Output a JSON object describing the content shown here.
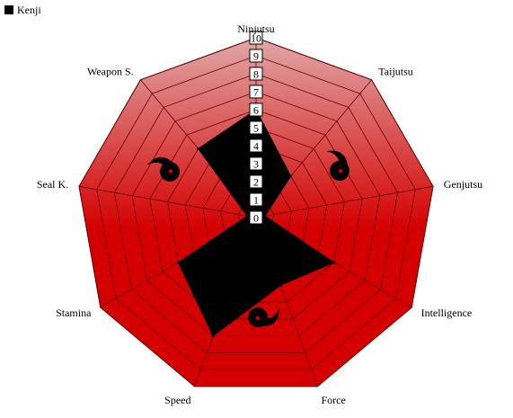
{
  "chart_data": {
    "type": "radar",
    "axes": [
      "Ninjutsu",
      "Taijutsu",
      "Genjutsu",
      "Intelligence",
      "Force",
      "Speed",
      "Stamina",
      "Seal K.",
      "Weapon S."
    ],
    "series": [
      {
        "name": "Kenji",
        "values": [
          6,
          3,
          0.5,
          5,
          4,
          7,
          5,
          0.5,
          5
        ]
      }
    ],
    "rlim": [
      0,
      10
    ],
    "ticks": [
      "0",
      "1",
      "2",
      "3",
      "4",
      "5",
      "6",
      "7",
      "8",
      "9",
      "10"
    ],
    "legend_position": "top-left",
    "colors": {
      "fill_top": "#e0a8a8",
      "fill_bottom": "#d40000",
      "series": "#000000",
      "grid": "#6b0000"
    }
  }
}
